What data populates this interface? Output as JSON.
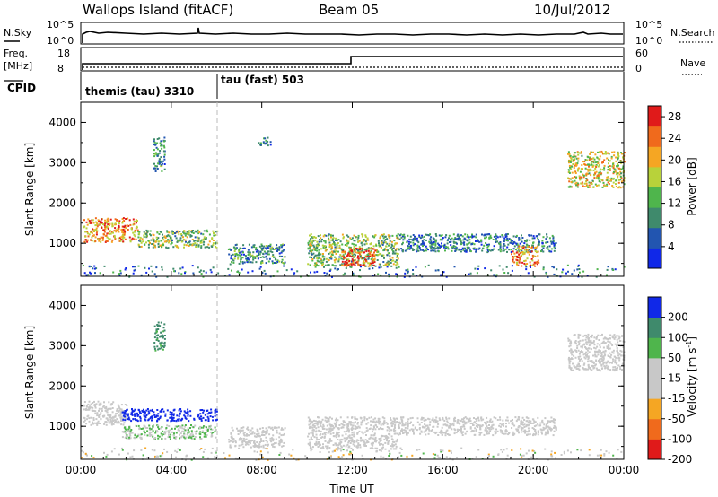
{
  "header": {
    "station": "Wallops Island (fitACF)",
    "beam": "Beam 05",
    "date": "10/Jul/2012"
  },
  "top_panels": {
    "nsky_label": "N.Sky",
    "nsky_ticks": [
      "10^5",
      "10^0"
    ],
    "nsearch_label": "N.Search",
    "nsearch_ticks": [
      "10^5",
      "10^0"
    ],
    "freq_label": "Freq.",
    "freq_unit": "[MHz]",
    "freq_ticks": [
      "18",
      "8"
    ],
    "nave_label": "Nave",
    "nave_ticks": [
      "60",
      "0"
    ],
    "cpid_label": "CPID",
    "cpid_segments": [
      {
        "name": "themis (tau) 3310",
        "start_hour": 0,
        "end_hour": 6
      },
      {
        "name": "tau (fast) 503",
        "start_hour": 6,
        "end_hour": 24
      }
    ]
  },
  "chart_data": [
    {
      "type": "heatmap",
      "name": "power",
      "ylabel": "Slant Range [km]",
      "xlabel": "Time UT",
      "xlim": [
        0,
        24
      ],
      "ylim": [
        180,
        4500
      ],
      "x_ticks": [
        "00:00",
        "04:00",
        "08:00",
        "12:00",
        "16:00",
        "20:00",
        "00:00"
      ],
      "y_ticks": [
        1000,
        2000,
        3000,
        4000
      ],
      "colorbar": {
        "label": "Power [dB]",
        "ticks": [
          4,
          8,
          12,
          16,
          20,
          24,
          28
        ],
        "range": [
          0,
          30
        ],
        "colors": [
          "#1028e8",
          "#2255b0",
          "#3f8a6c",
          "#4fb54c",
          "#b8d23a",
          "#f5a623",
          "#f06a1c",
          "#e01a1a"
        ]
      },
      "regions": [
        {
          "t0": 0.1,
          "t1": 2.5,
          "r0": 1050,
          "r1": 1650,
          "value": 22
        },
        {
          "t0": 2.5,
          "t1": 6.0,
          "r0": 900,
          "r1": 1350,
          "value": 14
        },
        {
          "t0": 3.2,
          "t1": 3.7,
          "r0": 2800,
          "r1": 3650,
          "value": 10
        },
        {
          "t0": 6.5,
          "t1": 9.0,
          "r0": 500,
          "r1": 1000,
          "value": 9
        },
        {
          "t0": 7.8,
          "t1": 8.4,
          "r0": 3450,
          "r1": 3650,
          "value": 6
        },
        {
          "t0": 10.0,
          "t1": 14.0,
          "r0": 450,
          "r1": 1250,
          "value": 14
        },
        {
          "t0": 11.5,
          "t1": 13.0,
          "r0": 450,
          "r1": 900,
          "value": 26
        },
        {
          "t0": 14.0,
          "t1": 21.0,
          "r0": 800,
          "r1": 1250,
          "value": 8
        },
        {
          "t0": 19.0,
          "t1": 20.2,
          "r0": 450,
          "r1": 950,
          "value": 22
        },
        {
          "t0": 21.5,
          "t1": 24.0,
          "r0": 2400,
          "r1": 3300,
          "value": 18
        }
      ]
    },
    {
      "type": "heatmap",
      "name": "velocity",
      "ylabel": "Slant Range [km]",
      "xlabel": "Time UT",
      "xlim": [
        0,
        24
      ],
      "ylim": [
        180,
        4500
      ],
      "x_ticks": [
        "00:00",
        "04:00",
        "08:00",
        "12:00",
        "16:00",
        "20:00",
        "00:00"
      ],
      "y_ticks": [
        1000,
        2000,
        3000,
        4000
      ],
      "colorbar": {
        "label": "Velocity [m s",
        "label_superscript": "-1",
        "label_close": "]",
        "ticks": [
          200,
          100,
          50,
          15,
          -15,
          -50,
          -100,
          -200
        ],
        "range": [
          -250,
          250
        ],
        "colors": [
          "#e01a1a",
          "#f06a1c",
          "#f5a623",
          "#c8c8c8",
          "#c8c8c8",
          "#4fb54c",
          "#3f8a6c",
          "#1028e8"
        ]
      },
      "regions": [
        {
          "t0": 0.1,
          "t1": 2.0,
          "r0": 1050,
          "r1": 1650,
          "value": 0
        },
        {
          "t0": 1.8,
          "t1": 6.0,
          "r0": 1150,
          "r1": 1450,
          "value": 220
        },
        {
          "t0": 1.8,
          "t1": 6.0,
          "r0": 700,
          "r1": 1050,
          "value": 60
        },
        {
          "t0": 3.2,
          "t1": 3.7,
          "r0": 2900,
          "r1": 3600,
          "value": 150
        },
        {
          "t0": 6.5,
          "t1": 9.0,
          "r0": 500,
          "r1": 1000,
          "value": 0
        },
        {
          "t0": 10.0,
          "t1": 14.0,
          "r0": 450,
          "r1": 1250,
          "value": 0
        },
        {
          "t0": 14.0,
          "t1": 21.0,
          "r0": 800,
          "r1": 1250,
          "value": 0
        },
        {
          "t0": 21.5,
          "t1": 24.0,
          "r0": 2400,
          "r1": 3300,
          "value": 0
        }
      ]
    }
  ]
}
